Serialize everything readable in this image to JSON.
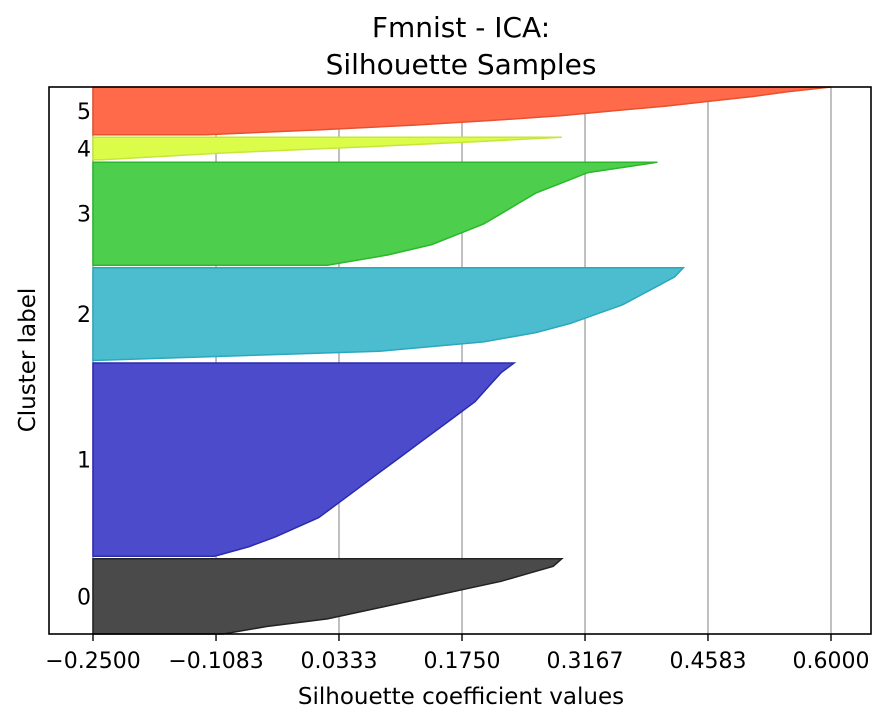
{
  "chart_data": {
    "type": "area",
    "title_line1": "Fmnist - ICA:",
    "title_line2": "Silhouette Samples",
    "xlabel": "Silhouette coefficient values",
    "ylabel": "Cluster label",
    "xlim": [
      -0.25,
      0.6
    ],
    "x_ticks": [
      {
        "value": -0.25,
        "label": "−0.2500"
      },
      {
        "value": -0.1083,
        "label": "−0.1083"
      },
      {
        "value": 0.0333,
        "label": "0.0333"
      },
      {
        "value": 0.175,
        "label": "0.1750"
      },
      {
        "value": 0.3167,
        "label": "0.3167"
      },
      {
        "value": 0.4583,
        "label": "0.4583"
      },
      {
        "value": 0.6,
        "label": "0.6000"
      }
    ],
    "grid": "vertical",
    "y_range": [
      0,
      218
    ],
    "clusters": [
      {
        "label": "0",
        "color": "#4a4a4a",
        "edge": "#222222",
        "y0": 0,
        "y1": 30,
        "profile": [
          [
            0,
            -0.1
          ],
          [
            0.1,
            -0.05
          ],
          [
            0.2,
            0.02
          ],
          [
            0.3,
            0.06
          ],
          [
            0.4,
            0.1
          ],
          [
            0.5,
            0.14
          ],
          [
            0.6,
            0.18
          ],
          [
            0.7,
            0.22
          ],
          [
            0.8,
            0.25
          ],
          [
            0.9,
            0.28
          ],
          [
            1,
            0.29
          ]
        ]
      },
      {
        "label": "1",
        "color": "#4b4bcc",
        "edge": "#2b2bb0",
        "y0": 31,
        "y1": 108,
        "profile": [
          [
            0,
            -0.11
          ],
          [
            0.05,
            -0.07
          ],
          [
            0.1,
            -0.04
          ],
          [
            0.2,
            0.01
          ],
          [
            0.3,
            0.04
          ],
          [
            0.4,
            0.07
          ],
          [
            0.5,
            0.1
          ],
          [
            0.6,
            0.13
          ],
          [
            0.7,
            0.16
          ],
          [
            0.8,
            0.19
          ],
          [
            0.9,
            0.21
          ],
          [
            0.95,
            0.22
          ],
          [
            1,
            0.235
          ]
        ]
      },
      {
        "label": "2",
        "color": "#4bbdce",
        "edge": "#2aa8bf",
        "y0": 109,
        "y1": 146,
        "profile": [
          [
            0,
            -0.25
          ],
          [
            0.1,
            0.08
          ],
          [
            0.2,
            0.2
          ],
          [
            0.3,
            0.26
          ],
          [
            0.4,
            0.3
          ],
          [
            0.5,
            0.33
          ],
          [
            0.6,
            0.36
          ],
          [
            0.7,
            0.38
          ],
          [
            0.8,
            0.4
          ],
          [
            0.9,
            0.42
          ],
          [
            1,
            0.43
          ]
        ]
      },
      {
        "label": "3",
        "color": "#4dcf4d",
        "edge": "#2ab82a",
        "y0": 147,
        "y1": 188,
        "profile": [
          [
            0,
            0.02
          ],
          [
            0.1,
            0.09
          ],
          [
            0.2,
            0.14
          ],
          [
            0.3,
            0.17
          ],
          [
            0.4,
            0.2
          ],
          [
            0.5,
            0.22
          ],
          [
            0.6,
            0.24
          ],
          [
            0.7,
            0.26
          ],
          [
            0.8,
            0.29
          ],
          [
            0.9,
            0.32
          ],
          [
            1,
            0.4
          ]
        ]
      },
      {
        "label": "4",
        "color": "#dcfc4a",
        "edge": "#c6e63a",
        "y0": 189,
        "y1": 198,
        "profile": [
          [
            0,
            -0.24
          ],
          [
            0.3,
            -0.1
          ],
          [
            0.6,
            0.08
          ],
          [
            0.8,
            0.19
          ],
          [
            1,
            0.29
          ]
        ]
      },
      {
        "label": "5",
        "color": "#ff6a4a",
        "edge": "#e8502e",
        "y0": 199,
        "y1": 218,
        "profile": [
          [
            0,
            -0.12
          ],
          [
            0.1,
            0.01
          ],
          [
            0.2,
            0.12
          ],
          [
            0.3,
            0.21
          ],
          [
            0.4,
            0.29
          ],
          [
            0.5,
            0.35
          ],
          [
            0.6,
            0.41
          ],
          [
            0.7,
            0.46
          ],
          [
            0.8,
            0.51
          ],
          [
            0.9,
            0.55
          ],
          [
            1,
            0.6
          ]
        ]
      }
    ]
  }
}
